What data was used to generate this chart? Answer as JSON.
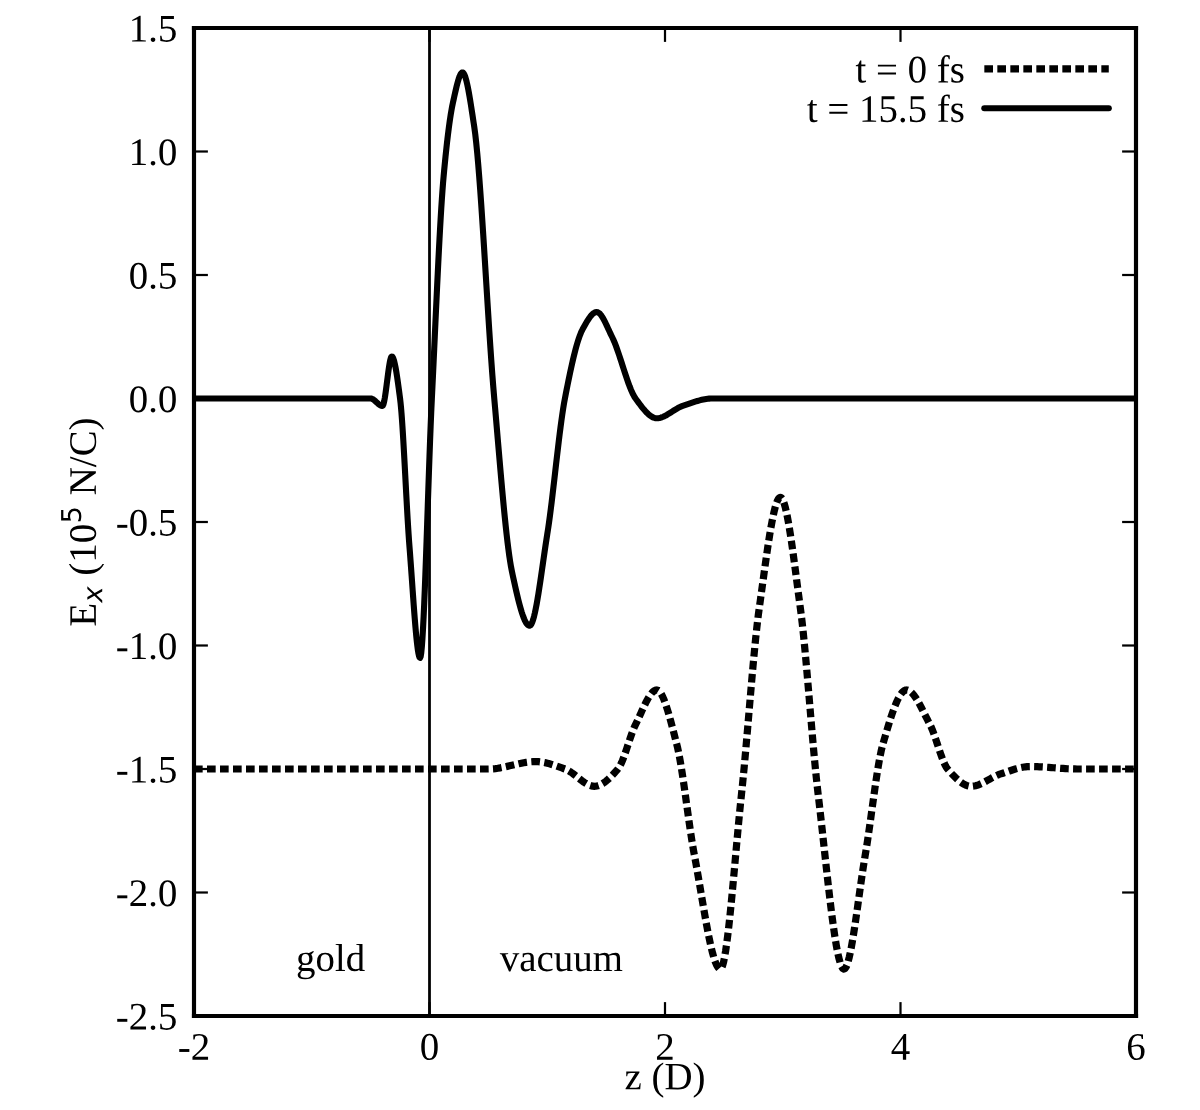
{
  "chart_data": {
    "type": "line",
    "xlabel": "z (D)",
    "ylabel": "E$_{x}$ (10$^{5}$ N/C)",
    "xlim": [
      -2,
      6
    ],
    "xticks": [
      -2,
      0,
      2,
      4,
      6
    ],
    "ylim": [
      -2.5,
      1.5
    ],
    "yticks": [
      -2.5,
      {
        "value": -2,
        "label": "-2.0"
      },
      -1.5,
      {
        "value": -1,
        "label": "-1.0"
      },
      -0.5,
      {
        "value": 0,
        "label": "0.0"
      },
      0.5,
      {
        "value": 1,
        "label": "1.0"
      },
      1.5
    ],
    "grid": false,
    "legend": "top right",
    "marker": "none",
    "ref_lines": [
      {
        "axis": "x",
        "value": 0,
        "color": "#000000",
        "line_style": "solid"
      }
    ],
    "annotations": [
      "gold",
      "vacuum"
    ],
    "series": [
      {
        "name": "t = 0 fs",
        "color": "#000000",
        "line_style": "dotted",
        "x": [
          -2,
          0.5,
          0.9,
          1.15,
          1.4,
          1.6,
          1.75,
          1.93,
          2.1,
          2.25,
          2.47,
          2.65,
          2.8,
          2.98,
          3.15,
          3.3,
          3.52,
          3.7,
          3.85,
          4.05,
          4.25,
          4.4,
          4.6,
          4.85,
          5.1,
          5.5,
          6
        ],
        "values": [
          -1.5,
          -1.5,
          -1.47,
          -1.5,
          -1.57,
          -1.5,
          -1.32,
          -1.18,
          -1.4,
          -1.85,
          -2.31,
          -1.6,
          -0.85,
          -0.4,
          -0.85,
          -1.6,
          -2.31,
          -1.85,
          -1.4,
          -1.18,
          -1.32,
          -1.5,
          -1.57,
          -1.52,
          -1.49,
          -1.5,
          -1.5
        ]
      },
      {
        "name": "t = 15.5 fs",
        "color": "#000000",
        "line_style": "solid",
        "x": [
          -2,
          -0.5,
          -0.4,
          -0.32,
          -0.25,
          -0.17,
          -0.08,
          0.02,
          0.12,
          0.2,
          0.28,
          0.38,
          0.55,
          0.7,
          0.85,
          1.0,
          1.15,
          1.3,
          1.42,
          1.55,
          1.75,
          1.93,
          2.15,
          2.4,
          3,
          6
        ],
        "values": [
          0,
          0,
          -0.03,
          0.17,
          0,
          -0.6,
          -1.05,
          0,
          0.9,
          1.2,
          1.32,
          1.1,
          0,
          -0.7,
          -0.92,
          -0.55,
          0,
          0.28,
          0.35,
          0.25,
          0,
          -0.08,
          -0.03,
          0,
          0,
          0
        ]
      }
    ]
  }
}
